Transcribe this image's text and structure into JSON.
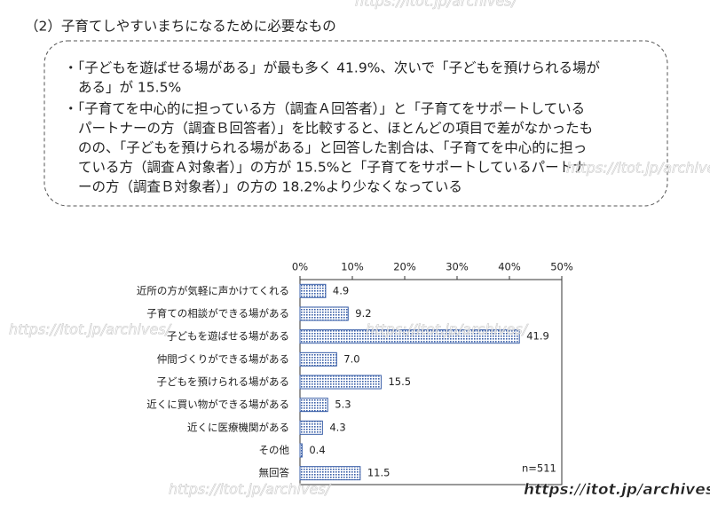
{
  "heading": "（2）子育てしやすいまちになるために必要なもの",
  "bullets": [
    [
      "・「子どもを遊ばせる場がある」が最も多く 41.9%、次いで「子どもを預けられる場が",
      "ある」が 15.5%"
    ],
    [
      "・「子育てを中心的に担っている方（調査Ａ回答者）」と「子育てをサポートしている",
      "パートナーの方（調査Ｂ回答者）」を比較すると、ほとんどの項目で差がなかったも",
      "のの、「子どもを預けられる場がある」と回答した割合は、「子育てを中心的に担っ",
      "ている方（調査Ａ対象者）」の方が 15.5%と「子育てをサポートしているパートナ",
      "ーの方（調査Ｂ対象者）」の方の 18.2%より少なくなっている"
    ]
  ],
  "watermark": "https://itot.jp/archives/",
  "chart_data": {
    "type": "hbar",
    "categories": [
      "近所の方が気軽に声かけてくれる",
      "子育ての相談ができる場がある",
      "子どもを遊ばせる場がある",
      "仲間づくりができる場がある",
      "子どもを預けられる場がある",
      "近くに買い物ができる場がある",
      "近くに医療機関がある",
      "その他",
      "無回答"
    ],
    "values": [
      4.9,
      9.2,
      41.9,
      7.0,
      15.5,
      5.3,
      4.3,
      0.4,
      11.5
    ],
    "value_labels": [
      "4.9",
      "9.2",
      "41.9",
      "7.0",
      "15.5",
      "5.3",
      "4.3",
      "0.4",
      "11.5"
    ],
    "color": "#3a5fa8",
    "ylim": [
      0,
      50
    ],
    "yticks": [
      {
        "value": 0,
        "label": "0%"
      },
      {
        "value": 10,
        "label": "10%"
      },
      {
        "value": 20,
        "label": "20%"
      },
      {
        "value": 30,
        "label": "30%"
      },
      {
        "value": 40,
        "label": "40%"
      },
      {
        "value": 50,
        "label": "50%"
      }
    ],
    "annotation": "n=511"
  }
}
